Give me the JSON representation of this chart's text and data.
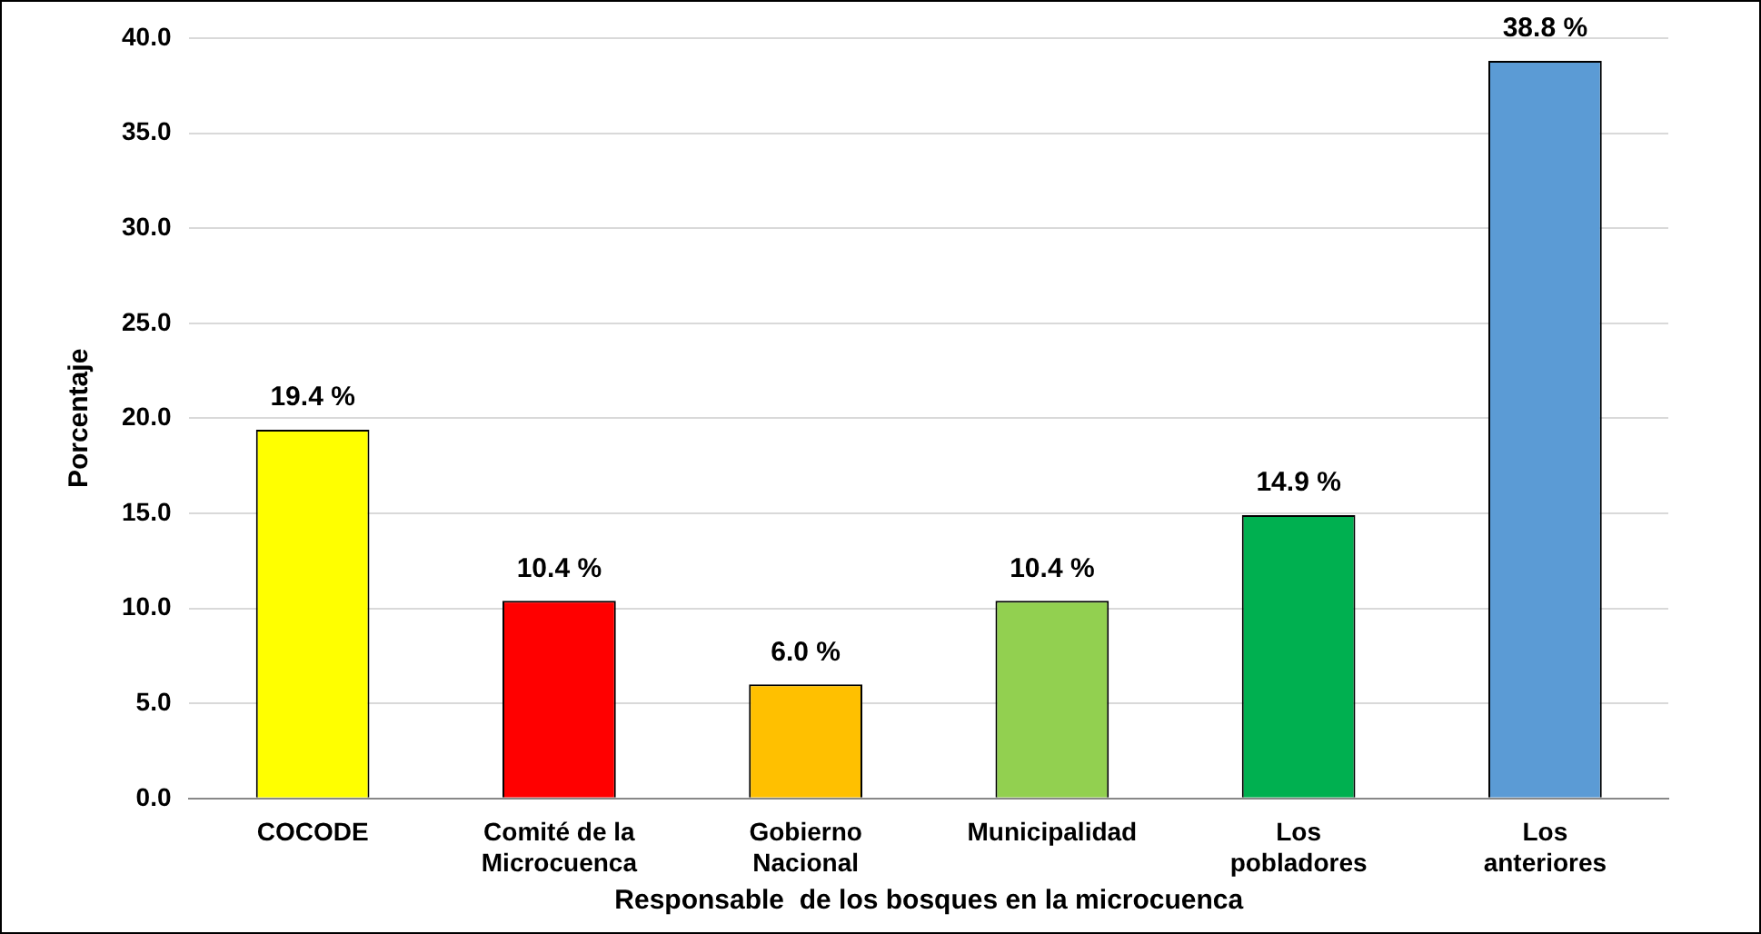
{
  "chart_data": {
    "type": "bar",
    "xlabel": "Responsable  de los bosques en la microcuenca",
    "ylabel": "Porcentaje",
    "categories": [
      "COCODE",
      "Comité de la Microcuenca",
      "Gobierno Nacional",
      "Municipalidad",
      "Los pobladores",
      "Los anteriores"
    ],
    "values": [
      19.4,
      10.4,
      6.0,
      10.4,
      14.9,
      38.8
    ],
    "value_labels": [
      "19.4 %",
      "10.4 %",
      "6.0 %",
      "10.4 %",
      "14.9 %",
      "38.8 %"
    ],
    "colors": [
      "#ffff00",
      "#ff0000",
      "#ffc000",
      "#92d050",
      "#00b050",
      "#5b9bd5"
    ],
    "ylim": [
      0,
      40
    ],
    "yticks": [
      {
        "value": 0,
        "label": "0.0"
      },
      {
        "value": 5,
        "label": "5.0"
      },
      {
        "value": 10,
        "label": "10.0"
      },
      {
        "value": 15,
        "label": "15.0"
      },
      {
        "value": 20,
        "label": "20.0"
      },
      {
        "value": 25,
        "label": "25.0"
      },
      {
        "value": 30,
        "label": "30.0"
      },
      {
        "value": 35,
        "label": "35.0"
      },
      {
        "value": 40,
        "label": "40.0"
      }
    ],
    "grid": "y",
    "legend": false
  }
}
